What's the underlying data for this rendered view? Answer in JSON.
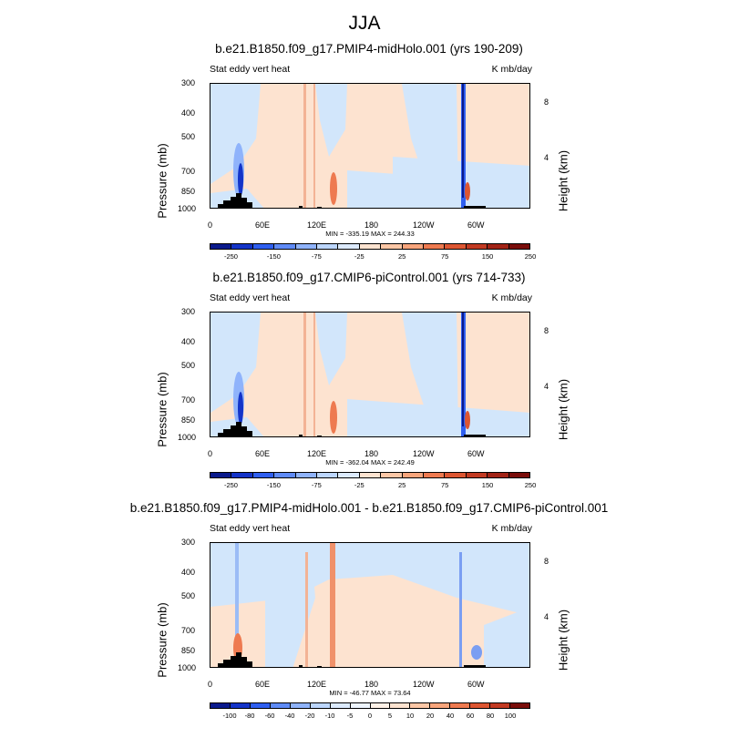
{
  "title": "JJA",
  "colors": {
    "bg_light_blue": "#d2e6fb",
    "bg_light_orange": "#fde3d0",
    "strong_blue": "#1b3fe0",
    "strong_red": "#d8542c",
    "topography": "#000000"
  },
  "chart_data": [
    {
      "type": "heatmap",
      "title": "b.e21.B1850.f09_g17.PMIP4-midHolo.001 (yrs 190-209)",
      "left_label": "Stat eddy vert heat",
      "right_label": "K mb/day",
      "ylabel": "Pressure (mb)",
      "ylabel_right": "Height (km)",
      "x_ticks": [
        "0",
        "60E",
        "120E",
        "180",
        "120W",
        "60W"
      ],
      "y_ticks": [
        "300",
        "400",
        "500",
        "700",
        "850",
        "1000"
      ],
      "y_right_ticks": [
        "8",
        "4"
      ],
      "minmax": "MIN = -335.19  MAX = 244.33",
      "colorbar_labels": [
        "-250",
        "-150",
        "-75",
        "-25",
        "25",
        "75",
        "150",
        "250"
      ],
      "min": -335.19,
      "max": 244.33
    },
    {
      "type": "heatmap",
      "title": "b.e21.B1850.f09_g17.CMIP6-piControl.001 (yrs 714-733)",
      "left_label": "Stat eddy vert heat",
      "right_label": "K mb/day",
      "ylabel": "Pressure (mb)",
      "ylabel_right": "Height (km)",
      "x_ticks": [
        "0",
        "60E",
        "120E",
        "180",
        "120W",
        "60W"
      ],
      "y_ticks": [
        "300",
        "400",
        "500",
        "700",
        "850",
        "1000"
      ],
      "y_right_ticks": [
        "8",
        "4"
      ],
      "minmax": "MIN = -362.04  MAX = 242.49",
      "colorbar_labels": [
        "-250",
        "-150",
        "-75",
        "-25",
        "25",
        "75",
        "150",
        "250"
      ],
      "min": -362.04,
      "max": 242.49
    },
    {
      "type": "heatmap",
      "title": "b.e21.B1850.f09_g17.PMIP4-midHolo.001 - b.e21.B1850.f09_g17.CMIP6-piControl.001",
      "left_label": "Stat eddy vert heat",
      "right_label": "K mb/day",
      "ylabel": "Pressure (mb)",
      "ylabel_right": "Height (km)",
      "x_ticks": [
        "0",
        "60E",
        "120E",
        "180",
        "120W",
        "60W"
      ],
      "y_ticks": [
        "300",
        "400",
        "500",
        "700",
        "850",
        "1000"
      ],
      "y_right_ticks": [
        "8",
        "4"
      ],
      "minmax": "MIN = -46.77  MAX =  73.64",
      "colorbar_labels": [
        "-100",
        "-80",
        "-60",
        "-40",
        "-20",
        "-10",
        "-5",
        "0",
        "5",
        "10",
        "20",
        "40",
        "60",
        "80",
        "100"
      ],
      "min": -46.77,
      "max": 73.64
    }
  ]
}
